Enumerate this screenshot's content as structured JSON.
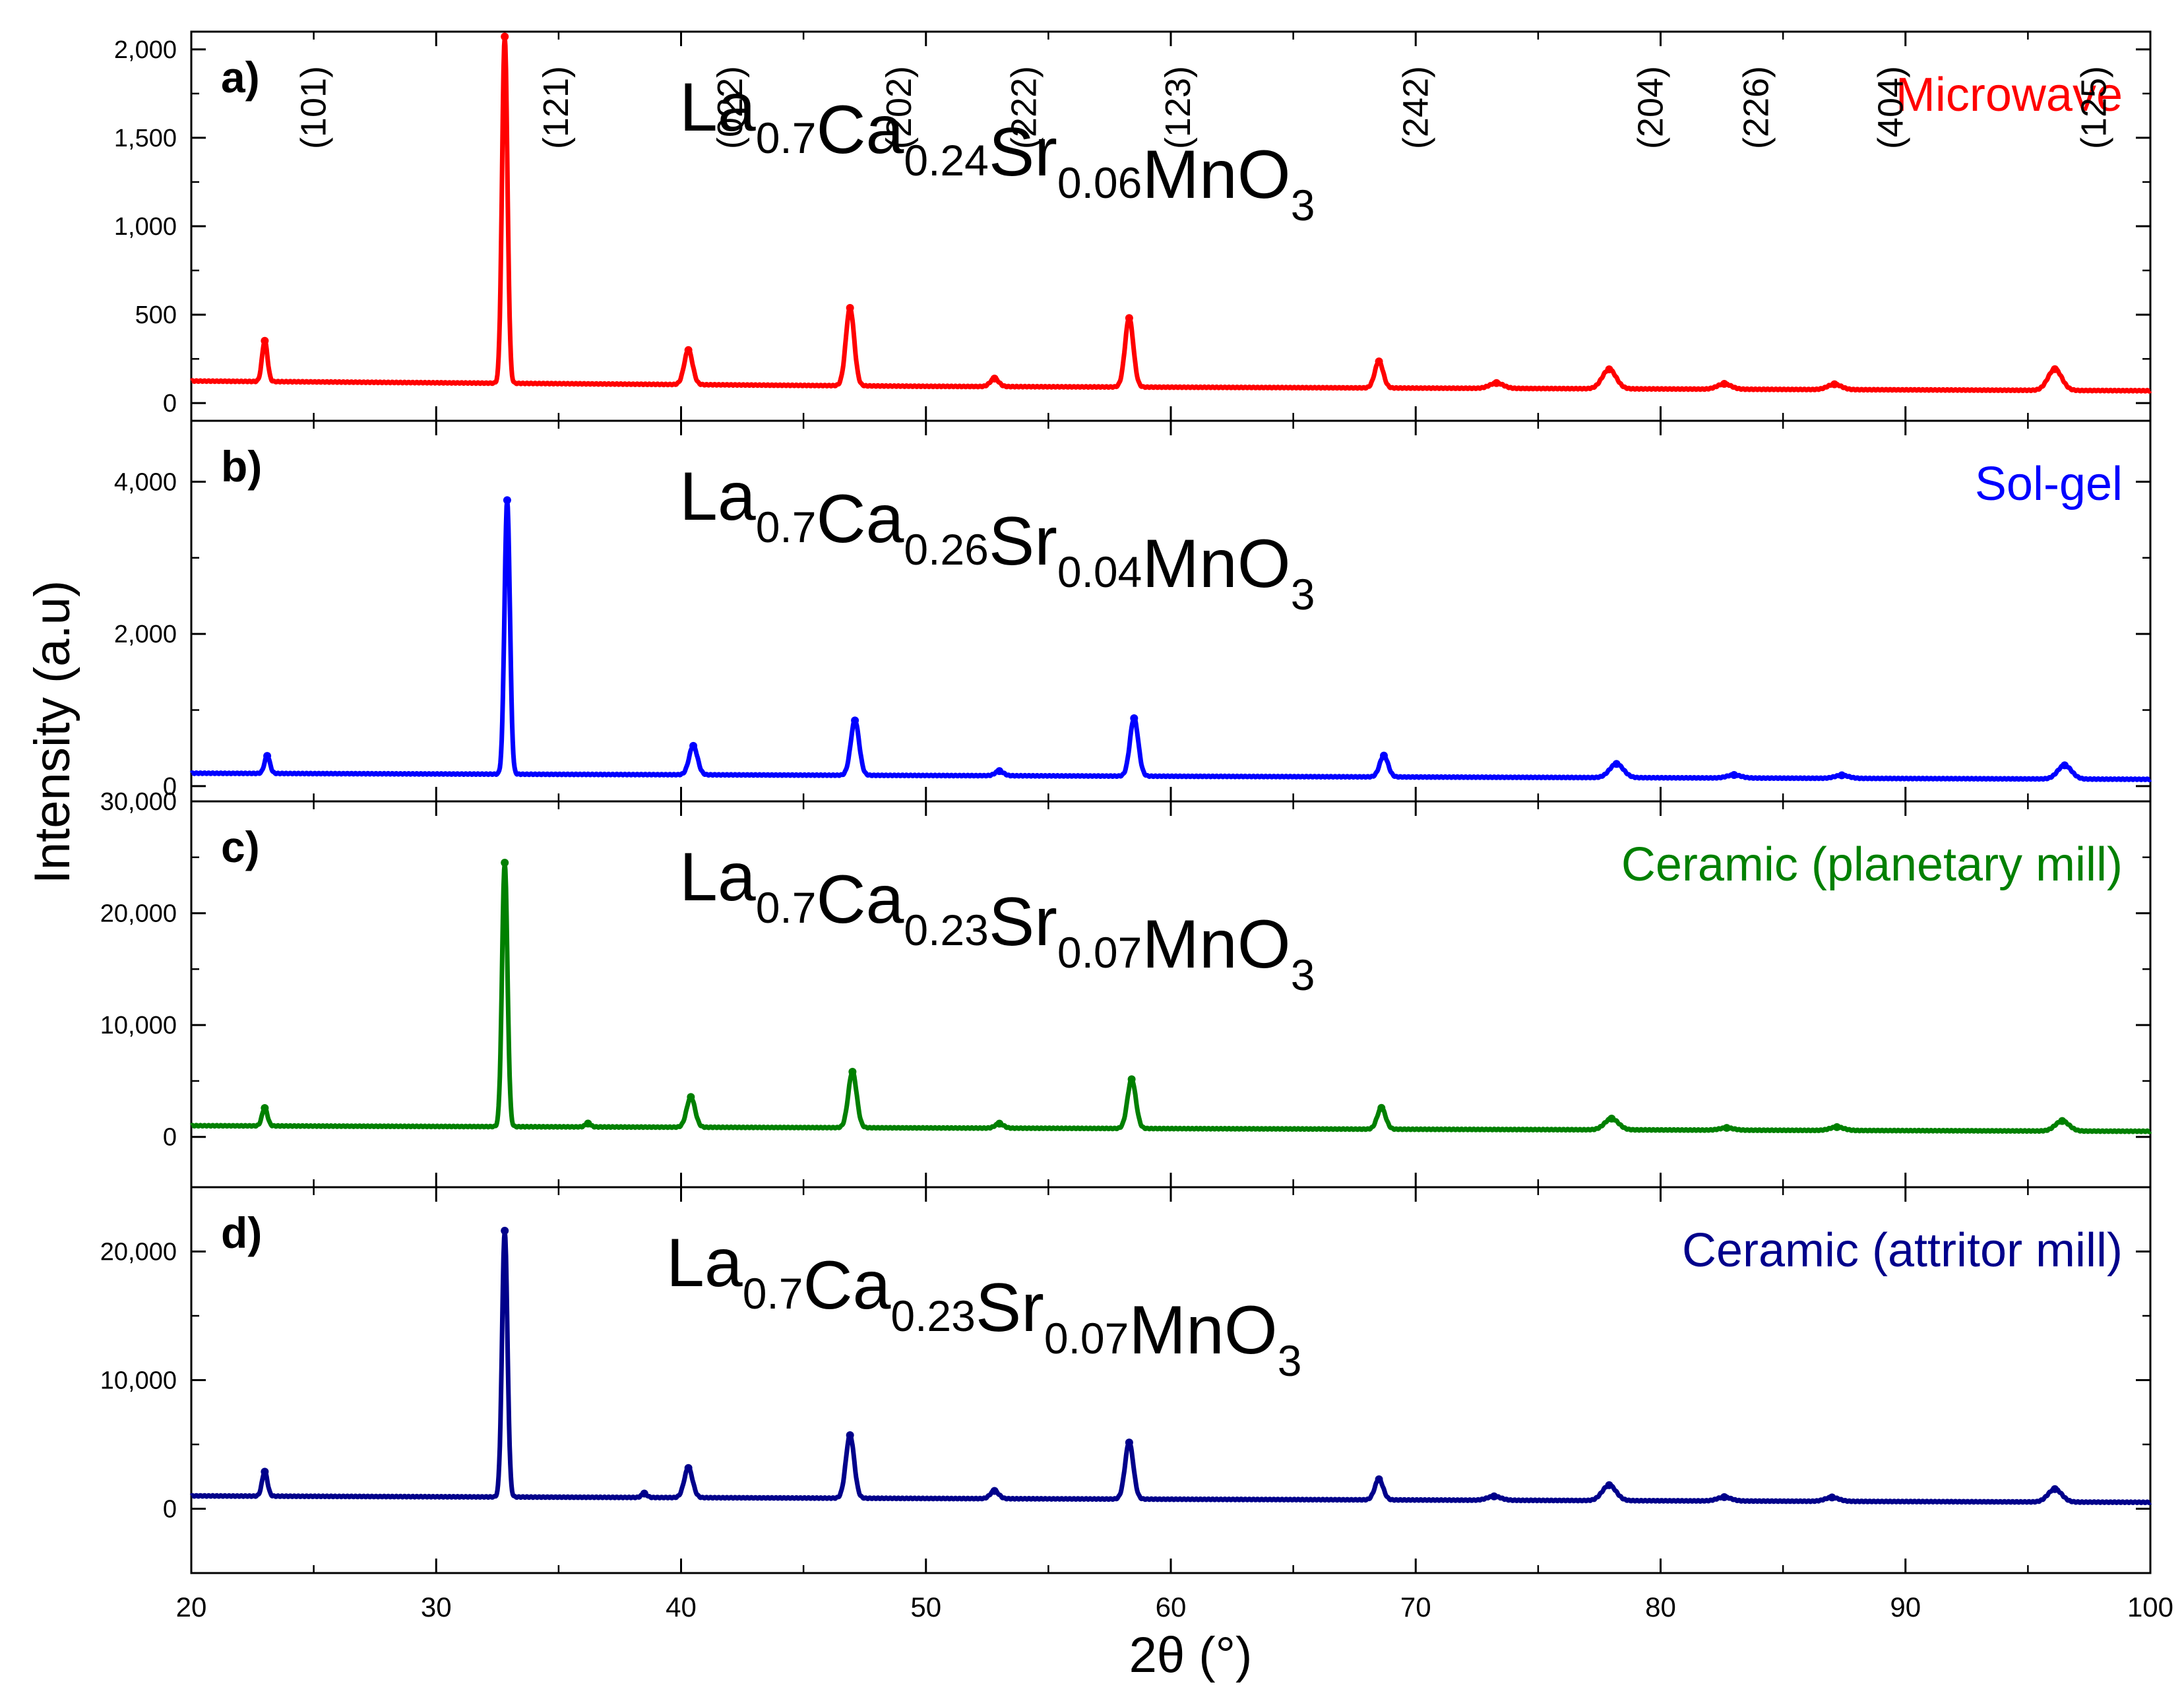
{
  "chart_data": {
    "type": "line",
    "xlabel": "2θ (°)",
    "ylabel": "Intensity (a.u)",
    "xlim": [
      20,
      100
    ],
    "xticks": [
      20,
      30,
      40,
      50,
      60,
      70,
      80,
      90,
      100
    ],
    "xtick_labels": [
      "20",
      "30",
      "40",
      "50",
      "60",
      "70",
      "80",
      "90",
      "100"
    ],
    "panels": [
      {
        "label": "a)",
        "formula": {
          "base": [
            "La",
            "Ca",
            "Sr",
            "MnO"
          ],
          "subs": [
            "0.7",
            "0.24",
            "0.06",
            "3"
          ]
        },
        "method": "Microwave",
        "color": "#ff0000",
        "ylim": [
          -100,
          2100
        ],
        "yticks": [
          0,
          500,
          1000,
          1500,
          2000
        ],
        "ytick_labels": [
          "0",
          "500",
          "1,000",
          "1,500",
          "2,000"
        ],
        "baseline": [
          [
            20,
            125
          ],
          [
            50,
            95
          ],
          [
            100,
            70
          ]
        ],
        "peaks": [
          [
            23.0,
            230
          ],
          [
            32.8,
            1960
          ],
          [
            40.3,
            195
          ],
          [
            46.9,
            440
          ],
          [
            52.8,
            45
          ],
          [
            58.3,
            390
          ],
          [
            68.5,
            150
          ],
          [
            73.3,
            30
          ],
          [
            77.9,
            110
          ],
          [
            82.6,
            30
          ],
          [
            87.1,
            30
          ],
          [
            96.1,
            120
          ]
        ],
        "hkl": [
          {
            "text": "(101)",
            "x": 25
          },
          {
            "text": "(121)",
            "x": 34.9
          },
          {
            "text": "(022)",
            "x": 42.0
          },
          {
            "text": "(202)",
            "x": 48.9
          },
          {
            "text": "(222)",
            "x": 54.0
          },
          {
            "text": "(123)",
            "x": 60.3
          },
          {
            "text": "(242)",
            "x": 70.0
          },
          {
            "text": "(204)",
            "x": 79.6
          },
          {
            "text": "(226)",
            "x": 83.9
          },
          {
            "text": "(404)",
            "x": 89.4
          },
          {
            "text": "(125)",
            "x": 97.7
          }
        ]
      },
      {
        "label": "b)",
        "formula": {
          "base": [
            "La",
            "Ca",
            "Sr",
            "MnO"
          ],
          "subs": [
            "0.7",
            "0.26",
            "0.04",
            "3"
          ]
        },
        "method": "Sol-gel",
        "color": "#0000ff",
        "ylim": [
          -200,
          4800
        ],
        "yticks": [
          0,
          2000,
          4000
        ],
        "ytick_labels": [
          "0",
          "2,000",
          "4,000"
        ],
        "baseline": [
          [
            20,
            170
          ],
          [
            50,
            140
          ],
          [
            100,
            90
          ]
        ],
        "peaks": [
          [
            23.1,
            230
          ],
          [
            32.9,
            3600
          ],
          [
            40.5,
            380
          ],
          [
            47.1,
            720
          ],
          [
            53.0,
            60
          ],
          [
            58.5,
            760
          ],
          [
            68.7,
            280
          ],
          [
            78.2,
            180
          ],
          [
            83.0,
            40
          ],
          [
            87.4,
            40
          ],
          [
            96.5,
            180
          ]
        ],
        "hkl": []
      },
      {
        "label": "c)",
        "formula": {
          "base": [
            "La",
            "Ca",
            "Sr",
            "MnO"
          ],
          "subs": [
            "0.7",
            "0.23",
            "0.07",
            "3"
          ]
        },
        "method": "Ceramic (planetary mill)",
        "color": "#008000",
        "ylim": [
          -4500,
          30000
        ],
        "yticks": [
          0,
          10000,
          20000,
          30000
        ],
        "ytick_labels": [
          "0",
          "10,000",
          "20,000",
          "30,000"
        ],
        "baseline": [
          [
            20,
            1000
          ],
          [
            50,
            800
          ],
          [
            100,
            500
          ]
        ],
        "peaks": [
          [
            23.0,
            1600
          ],
          [
            32.8,
            23600
          ],
          [
            36.2,
            300
          ],
          [
            40.4,
            2700
          ],
          [
            47.0,
            5000
          ],
          [
            53.0,
            400
          ],
          [
            58.4,
            4400
          ],
          [
            68.6,
            1900
          ],
          [
            78.0,
            1000
          ],
          [
            82.7,
            200
          ],
          [
            87.2,
            300
          ],
          [
            96.4,
            900
          ]
        ],
        "hkl": []
      },
      {
        "label": "d)",
        "formula": {
          "base": [
            "La",
            "Ca",
            "Sr",
            "MnO"
          ],
          "subs": [
            "0.7",
            "0.23",
            "0.07",
            "3"
          ]
        },
        "method": "Ceramic (attritor mill)",
        "color": "#00008b",
        "ylim": [
          -5000,
          25000
        ],
        "yticks": [
          0,
          10000,
          20000
        ],
        "ytick_labels": [
          "0",
          "10,000",
          "20,000"
        ],
        "baseline": [
          [
            20,
            1000
          ],
          [
            50,
            800
          ],
          [
            100,
            500
          ]
        ],
        "peaks": [
          [
            23.0,
            1900
          ],
          [
            32.8,
            20700
          ],
          [
            38.5,
            300
          ],
          [
            40.3,
            2300
          ],
          [
            46.9,
            4900
          ],
          [
            52.8,
            600
          ],
          [
            58.3,
            4400
          ],
          [
            68.5,
            1600
          ],
          [
            73.2,
            300
          ],
          [
            77.9,
            1200
          ],
          [
            82.6,
            300
          ],
          [
            87.0,
            300
          ],
          [
            96.1,
            1000
          ]
        ],
        "hkl": []
      }
    ]
  }
}
